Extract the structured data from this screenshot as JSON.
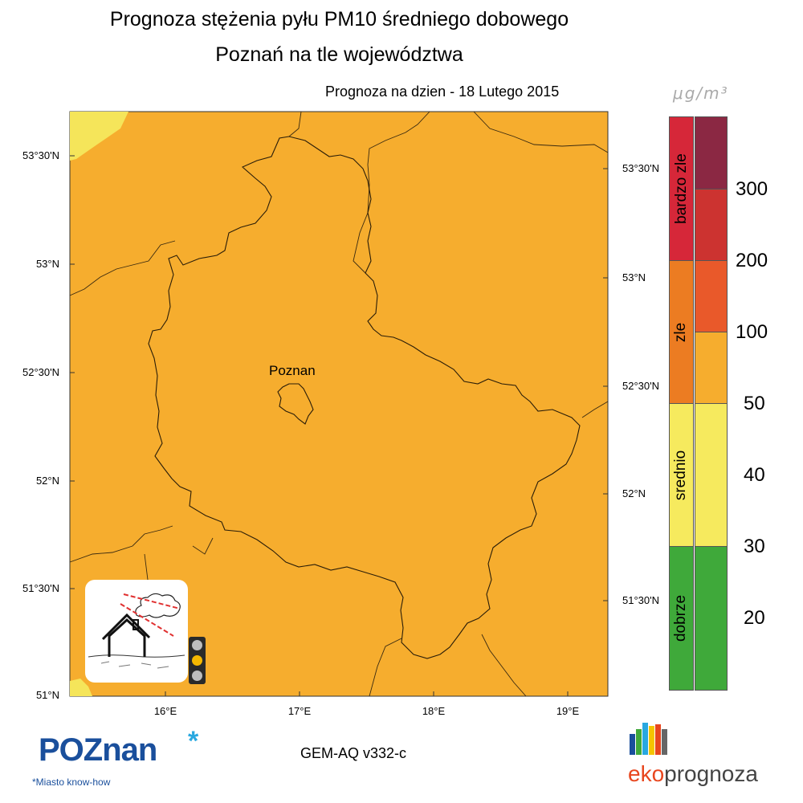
{
  "header": {
    "title_line1": "Prognoza stężenia pyłu PM10 średniego dobowego",
    "title_line2": "Poznań na tle województwa",
    "forecast_date": "Prognoza na dzien -  18 Lutego 2015"
  },
  "map": {
    "city_label": "Poznan",
    "background_color": "#f6ad2e",
    "corner_color": "#f5e55a",
    "lat_labels_left": [
      "53°30'N",
      "53°N",
      "52°30'N",
      "52°N",
      "51°30'N",
      "51°N"
    ],
    "lat_labels_right": [
      "53°30'N",
      "53°N",
      "52°30'N",
      "52°N",
      "51°30'N"
    ],
    "lon_labels": [
      "16°E",
      "17°E",
      "18°E",
      "19°E"
    ]
  },
  "colorbar": {
    "unit": "μg/m³",
    "categories": [
      {
        "label": "bardzo zle",
        "color": "#d62739"
      },
      {
        "label": "zle",
        "color": "#ec7c22"
      },
      {
        "label": "srednio",
        "color": "#f6ea5e"
      },
      {
        "label": "dobrze",
        "color": "#3fa93a"
      }
    ],
    "swatch_colors": [
      "#8b2843",
      "#cc3330",
      "#e9592a",
      "#f6ad2e",
      "#f6ea5e",
      "#3fa93a"
    ],
    "labels": [
      "300",
      "200",
      "100",
      "50",
      "40",
      "30",
      "20"
    ]
  },
  "indicator": {
    "traffic_light_active": "yellow",
    "traffic_light_colors": {
      "off": "#bdbdbd",
      "active": "#f5b800"
    }
  },
  "footer": {
    "logo_text": "POZnan",
    "logo_asterisk": "*",
    "logo_tagline": "*Miasto know-how",
    "model": "GEM-AQ v332-c",
    "eko_prefix": "eko",
    "eko_suffix": "prognoza"
  }
}
